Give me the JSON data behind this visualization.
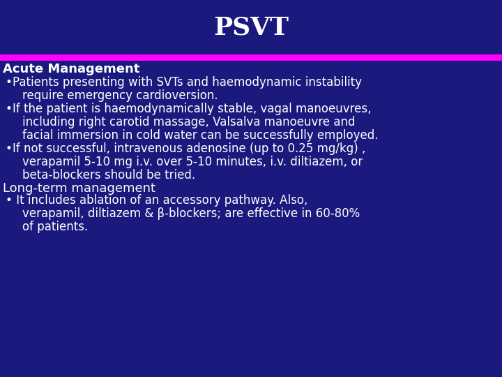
{
  "title": "PSVT",
  "title_color": "#FFFFFF",
  "title_fontsize": 26,
  "title_bold": true,
  "bg_color": "#1a1a7e",
  "separator_color": "#ff00ff",
  "text_color": "#FFFFFF",
  "heading1": "Acute Management",
  "heading1_fontsize": 13,
  "heading2": "Long-term management",
  "heading2_fontsize": 13,
  "bullet_fontsize": 12,
  "lines": [
    {
      "type": "heading",
      "text": "Acute Management",
      "bold": true,
      "indent": 0
    },
    {
      "type": "bullet",
      "text": "Patients presenting with SVTs and haemodynamic instability",
      "indent": 1
    },
    {
      "type": "continuation",
      "text": "require emergency cardioversion.",
      "indent": 2
    },
    {
      "type": "bullet",
      "text": "If the patient is haemodynamically stable, vagal manoeuvres,",
      "indent": 1
    },
    {
      "type": "continuation",
      "text": "including right carotid massage, Valsalva manoeuvre and",
      "indent": 2
    },
    {
      "type": "continuation",
      "text": "facial immersion in cold water can be successfully employed.",
      "indent": 2
    },
    {
      "type": "bullet",
      "text": "If not successful, intravenous adenosine (up to 0.25 mg/kg) ,",
      "indent": 1
    },
    {
      "type": "continuation",
      "text": "verapamil 5-10 mg i.v. over 5-10 minutes, i.v. diltiazem, or",
      "indent": 2
    },
    {
      "type": "continuation",
      "text": "beta-blockers should be tried.",
      "indent": 2
    },
    {
      "type": "heading",
      "text": "Long-term management",
      "bold": false,
      "indent": 0
    },
    {
      "type": "bullet",
      "text": " It includes ablation of an accessory pathway. Also,",
      "indent": 1
    },
    {
      "type": "continuation",
      "text": "verapamil, diltiazem & β-blockers; are effective in 60-80%",
      "indent": 2
    },
    {
      "type": "continuation",
      "text": "of patients.",
      "indent": 2
    }
  ]
}
